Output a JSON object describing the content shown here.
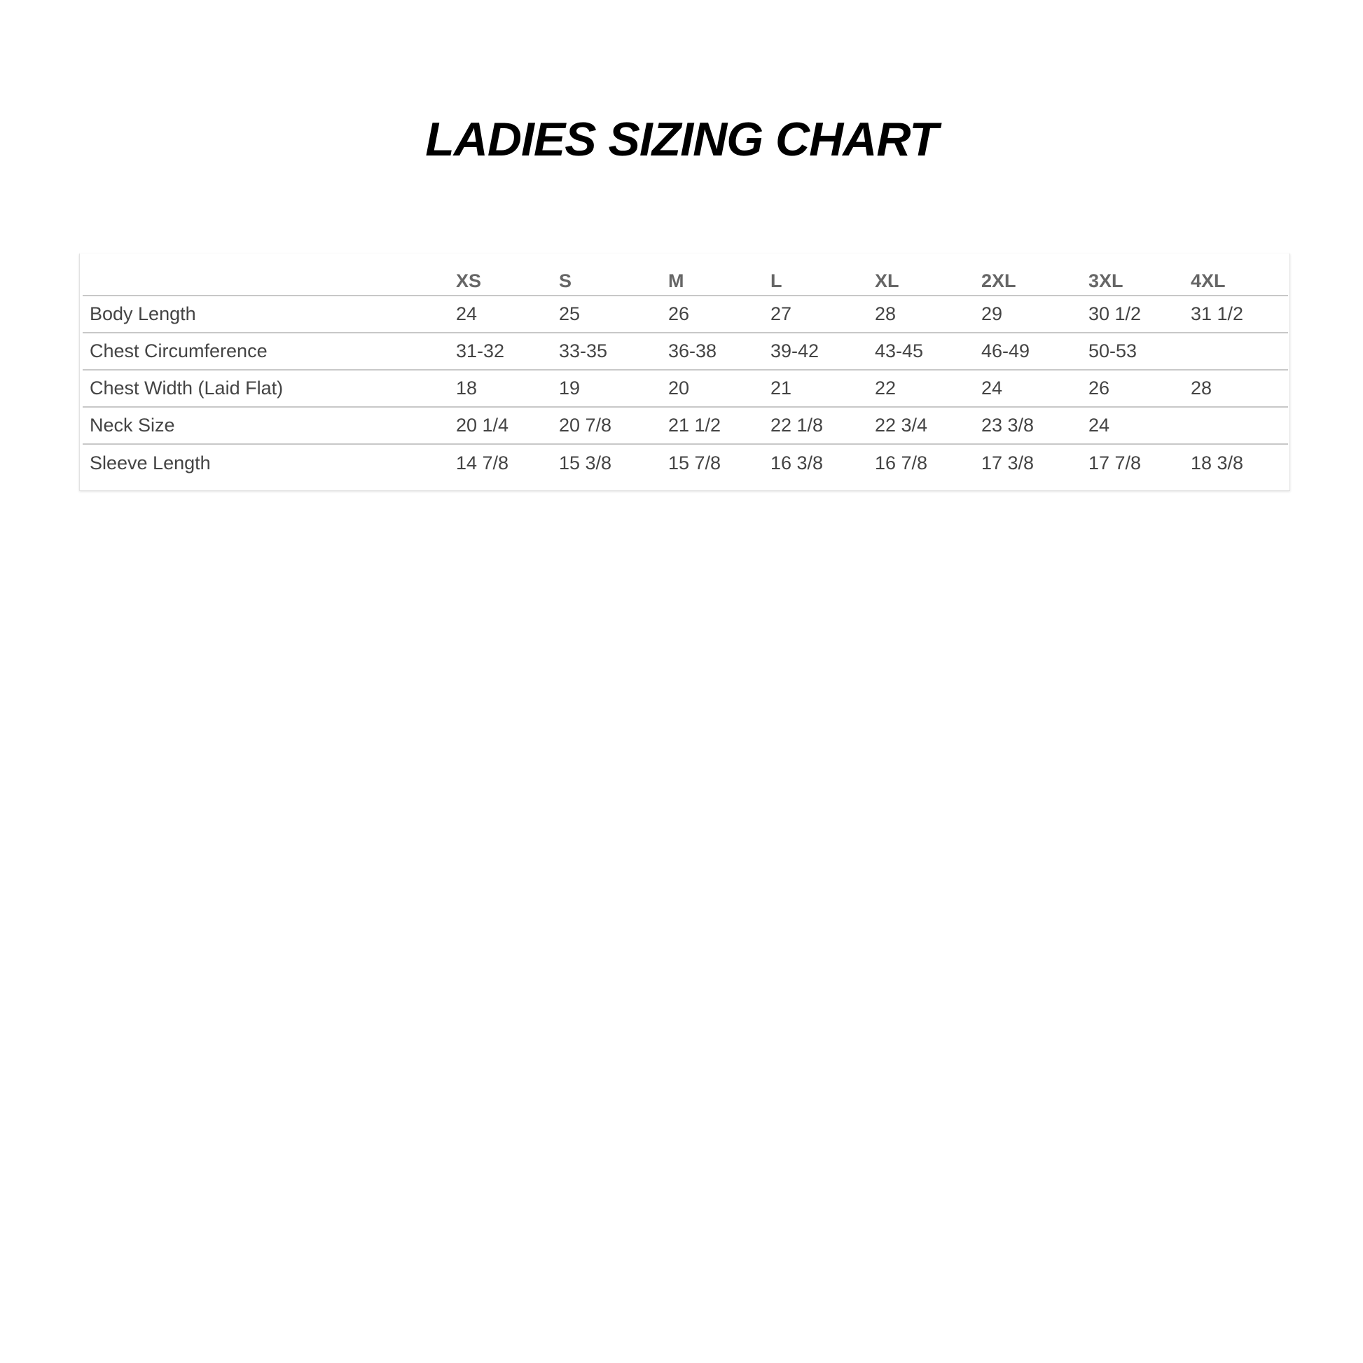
{
  "title": "LADIES SIZING CHART",
  "table": {
    "columns": [
      "",
      "XS",
      "S",
      "M",
      "L",
      "XL",
      "2XL",
      "3XL",
      "4XL"
    ],
    "rows": [
      {
        "label": "Body Length",
        "values": [
          "24",
          "25",
          "26",
          "27",
          "28",
          "29",
          "30 1/2",
          "31 1/2"
        ]
      },
      {
        "label": "Chest Circumference",
        "values": [
          "31-32",
          "33-35",
          "36-38",
          "39-42",
          "43-45",
          "46-49",
          "50-53",
          ""
        ]
      },
      {
        "label": "Chest Width (Laid Flat)",
        "values": [
          "18",
          "19",
          "20",
          "21",
          "22",
          "24",
          "26",
          "28"
        ]
      },
      {
        "label": "Neck Size",
        "values": [
          "20 1/4",
          "20 7/8",
          "21 1/2",
          "22 1/8",
          "22 3/4",
          "23 3/8",
          "24",
          ""
        ]
      },
      {
        "label": "Sleeve Length",
        "values": [
          "14 7/8",
          "15 3/8",
          "15 7/8",
          "16 3/8",
          "16 7/8",
          "17 3/8",
          "17 7/8",
          "18 3/8"
        ]
      }
    ]
  }
}
